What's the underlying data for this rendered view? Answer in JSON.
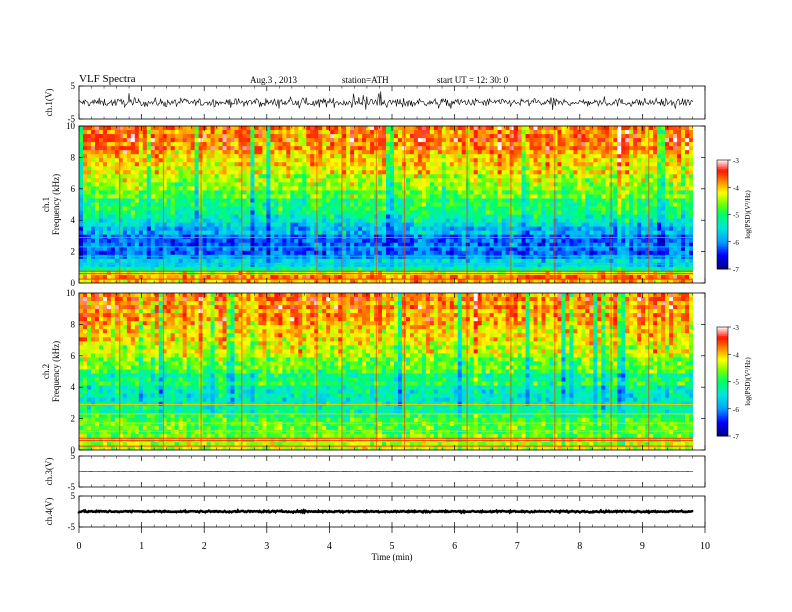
{
  "header": {
    "title": "VLF  Spectra",
    "date": "Aug.3  , 2013",
    "station": "station=ATH",
    "start": "start  UT  =   12: 30: 0"
  },
  "colorbar": {
    "label": "log(PSD)(V²/Hz)",
    "ticks": [
      "-3",
      "-4",
      "-5",
      "-6",
      "-7"
    ],
    "colors": [
      "#000080",
      "#0000ff",
      "#00c0ff",
      "#00ff80",
      "#80ff00",
      "#ffff00",
      "#ff8000",
      "#ff0000",
      "#ffffff"
    ]
  },
  "chart_data": [
    {
      "type": "line",
      "panel": "ch1-waveform",
      "ylabel": "ch.1(V)",
      "ylim": [
        -5,
        5
      ],
      "yticks": [
        "5",
        "-5"
      ],
      "description_values": {
        "mean": 0,
        "noise_amplitude": 1.2
      }
    },
    {
      "type": "heatmap",
      "panel": "ch1-spectrogram",
      "ylabel": "ch.1",
      "ylabel2": "Frequency  (kHz)",
      "ylim": [
        0,
        10
      ],
      "yticks": [
        "0",
        "2",
        "4",
        "6",
        "8",
        "10"
      ],
      "xlim": [
        0,
        9.8
      ],
      "zlim": [
        -7,
        -3
      ],
      "profile": [
        {
          "f": 0.0,
          "z": -4.3
        },
        {
          "f": 0.5,
          "z": -3.6
        },
        {
          "f": 1.0,
          "z": -5.5
        },
        {
          "f": 2.0,
          "z": -6.1
        },
        {
          "f": 3.0,
          "z": -6.0
        },
        {
          "f": 4.0,
          "z": -5.4
        },
        {
          "f": 5.0,
          "z": -5.0
        },
        {
          "f": 6.0,
          "z": -4.6
        },
        {
          "f": 7.0,
          "z": -4.2
        },
        {
          "f": 8.0,
          "z": -3.9
        },
        {
          "f": 10.0,
          "z": -3.6
        }
      ]
    },
    {
      "type": "heatmap",
      "panel": "ch2-spectrogram",
      "ylabel": "ch.2",
      "ylabel2": "Frequency  (kHz)",
      "ylim": [
        0,
        10
      ],
      "yticks": [
        "0",
        "2",
        "4",
        "6",
        "8",
        "10"
      ],
      "xlim": [
        0,
        9.8
      ],
      "zlim": [
        -7,
        -3
      ],
      "profile": [
        {
          "f": 0.0,
          "z": -4.4
        },
        {
          "f": 0.5,
          "z": -4.3
        },
        {
          "f": 1.0,
          "z": -4.6
        },
        {
          "f": 2.0,
          "z": -5.0
        },
        {
          "f": 3.0,
          "z": -5.4
        },
        {
          "f": 4.0,
          "z": -5.2
        },
        {
          "f": 5.0,
          "z": -4.8
        },
        {
          "f": 6.0,
          "z": -4.5
        },
        {
          "f": 7.0,
          "z": -4.1
        },
        {
          "f": 8.0,
          "z": -3.9
        },
        {
          "f": 10.0,
          "z": -3.7
        }
      ]
    },
    {
      "type": "line",
      "panel": "ch3-waveform",
      "ylabel": "ch.3(V)",
      "ylim": [
        -5,
        5
      ],
      "yticks": [
        "5",
        "-5"
      ],
      "description_values": {
        "mean": 0,
        "noise_amplitude": 0.05
      }
    },
    {
      "type": "line",
      "panel": "ch4-waveform",
      "ylabel": "ch.4(V)",
      "ylim": [
        -5,
        5
      ],
      "yticks": [
        "5",
        "-5"
      ],
      "description_values": {
        "mean": 0,
        "noise_amplitude": 0.25
      }
    }
  ],
  "xaxis": {
    "label": "Time  (min)",
    "ticks": [
      "0",
      "1",
      "2",
      "3",
      "4",
      "5",
      "6",
      "7",
      "8",
      "9",
      "10"
    ],
    "xlim": [
      0,
      10
    ]
  }
}
